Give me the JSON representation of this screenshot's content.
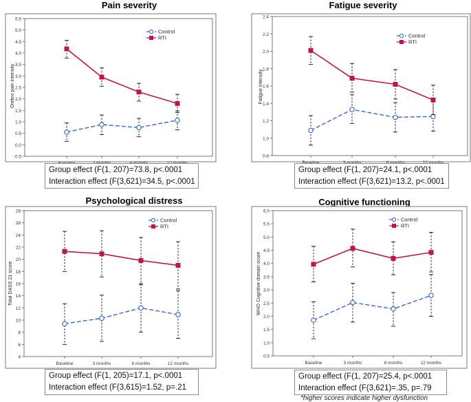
{
  "colors": {
    "control": "#2f66d6",
    "rti": "#c0144e",
    "axis": "#555555",
    "frame": "#777777"
  },
  "chart_data": [
    {
      "type": "line",
      "title": "Pain severity",
      "ylabel": "Orebro pain intensity",
      "categories": [
        "Baseline",
        "3 months",
        "6 months",
        "12 months"
      ],
      "ylim": [
        -0.5,
        5.5
      ],
      "yticks": [
        -0.5,
        0.0,
        0.5,
        1.0,
        1.5,
        2.0,
        2.5,
        3.0,
        3.5,
        4.0,
        4.5,
        5.0,
        5.5
      ],
      "ytick_labels": [
        "-0.5",
        "0.0",
        "0.5",
        "1.0",
        "1.5",
        "2.0",
        "2.5",
        "3.0",
        "3.5",
        "4.0",
        "4.5",
        "5.0",
        "5.5"
      ],
      "legend": [
        "Control",
        "RTI"
      ],
      "series": [
        {
          "name": "Control",
          "values": [
            0.55,
            0.88,
            0.75,
            1.07
          ],
          "lower": [
            0.15,
            0.45,
            0.35,
            0.65
          ],
          "upper": [
            0.95,
            1.3,
            1.15,
            1.48
          ]
        },
        {
          "name": "RTI",
          "values": [
            4.18,
            2.95,
            2.3,
            1.8
          ],
          "lower": [
            3.78,
            2.55,
            1.9,
            1.4
          ],
          "upper": [
            4.55,
            3.35,
            2.68,
            2.2
          ]
        }
      ],
      "effects": [
        "Group effect (F(1, 207)=73.8, p<.0001",
        "Interaction effect (F(3,621)=34.5, p<.0001"
      ]
    },
    {
      "type": "line",
      "title": "Fatigue severity",
      "ylabel": "Fatigue intensity",
      "categories": [
        "Baseline",
        "3 months",
        "6 months",
        "12 months"
      ],
      "ylim": [
        0.8,
        2.4
      ],
      "yticks": [
        0.8,
        1.0,
        1.2,
        1.4,
        1.6,
        1.8,
        2.0,
        2.2,
        2.4
      ],
      "ytick_labels": [
        "0.8",
        "1.0",
        "1.2",
        "1.4",
        "1.6",
        "1.8",
        "2.0",
        "2.2",
        "2.4"
      ],
      "legend": [
        "Control",
        "RTI"
      ],
      "series": [
        {
          "name": "Control",
          "values": [
            1.09,
            1.33,
            1.24,
            1.25
          ],
          "lower": [
            0.92,
            1.17,
            1.07,
            1.08
          ],
          "upper": [
            1.26,
            1.5,
            1.41,
            1.42
          ]
        },
        {
          "name": "RTI",
          "values": [
            2.01,
            1.69,
            1.62,
            1.44
          ],
          "lower": [
            1.85,
            1.53,
            1.45,
            1.27
          ],
          "upper": [
            2.17,
            1.86,
            1.79,
            1.61
          ]
        }
      ],
      "effects": [
        "Group effect (F(1, 207)=24.1, p<.0001",
        "Interaction effect (F(3,621)=13.2, p<.0001"
      ]
    },
    {
      "type": "line",
      "title": "Psychological distress",
      "ylabel": "Total DASS 21 score",
      "categories": [
        "Baseline",
        "3 months",
        "6 months",
        "12 months"
      ],
      "ylim": [
        4,
        28
      ],
      "yticks": [
        4,
        6,
        8,
        10,
        12,
        14,
        16,
        18,
        20,
        22,
        24,
        26,
        28
      ],
      "ytick_labels": [
        "4",
        "6",
        "8",
        "10",
        "12",
        "14",
        "16",
        "18",
        "20",
        "22",
        "24",
        "26",
        "28"
      ],
      "legend": [
        "Control",
        "RTI"
      ],
      "series": [
        {
          "name": "Control",
          "values": [
            9.4,
            10.3,
            12.0,
            10.9
          ],
          "lower": [
            6.0,
            6.5,
            8.0,
            7.0
          ],
          "upper": [
            12.7,
            14.1,
            16.0,
            14.8
          ]
        },
        {
          "name": "RTI",
          "values": [
            21.3,
            20.9,
            19.8,
            19.0
          ],
          "lower": [
            18.0,
            17.1,
            15.8,
            15.1
          ],
          "upper": [
            24.6,
            24.7,
            23.6,
            22.9
          ]
        }
      ],
      "effects": [
        "Group effect (F(1, 205)=17.1, p<.0001",
        "Interaction effect (F(3,615)=1.52, p=.21"
      ]
    },
    {
      "type": "line",
      "title": "Cognitive functioning",
      "ylabel": "WHO Cognitive domain score",
      "categories": [
        "Baseline",
        "3 months",
        "6 months",
        "12 months"
      ],
      "ylim": [
        0.5,
        6.0
      ],
      "yticks": [
        0.5,
        1.0,
        1.5,
        2.0,
        2.5,
        3.0,
        3.5,
        4.0,
        4.5,
        5.0,
        5.5,
        6.0
      ],
      "ytick_labels": [
        "0.5",
        "1.0",
        "1.5",
        "2.0",
        "2.5",
        "3.0",
        "3.5",
        "4.0",
        "4.5",
        "5.0",
        "5.5",
        "6.0"
      ],
      "legend": [
        "Control",
        "RTI"
      ],
      "series": [
        {
          "name": "Control",
          "values": [
            1.85,
            2.52,
            2.28,
            2.79
          ],
          "lower": [
            1.15,
            1.78,
            1.62,
            2.0
          ],
          "upper": [
            2.55,
            3.25,
            2.9,
            3.58
          ]
        },
        {
          "name": "RTI",
          "values": [
            3.97,
            4.57,
            4.19,
            4.42
          ],
          "lower": [
            3.3,
            3.87,
            3.57,
            3.68
          ],
          "upper": [
            4.65,
            5.3,
            4.82,
            5.18
          ]
        }
      ],
      "effects": [
        "Group effect (F(1, 207)=25.4, p<.0001",
        "Interaction effect (F(3,621)=.35, p=.79"
      ]
    }
  ],
  "footnote": "*higher scores indicate higher dysfunction"
}
